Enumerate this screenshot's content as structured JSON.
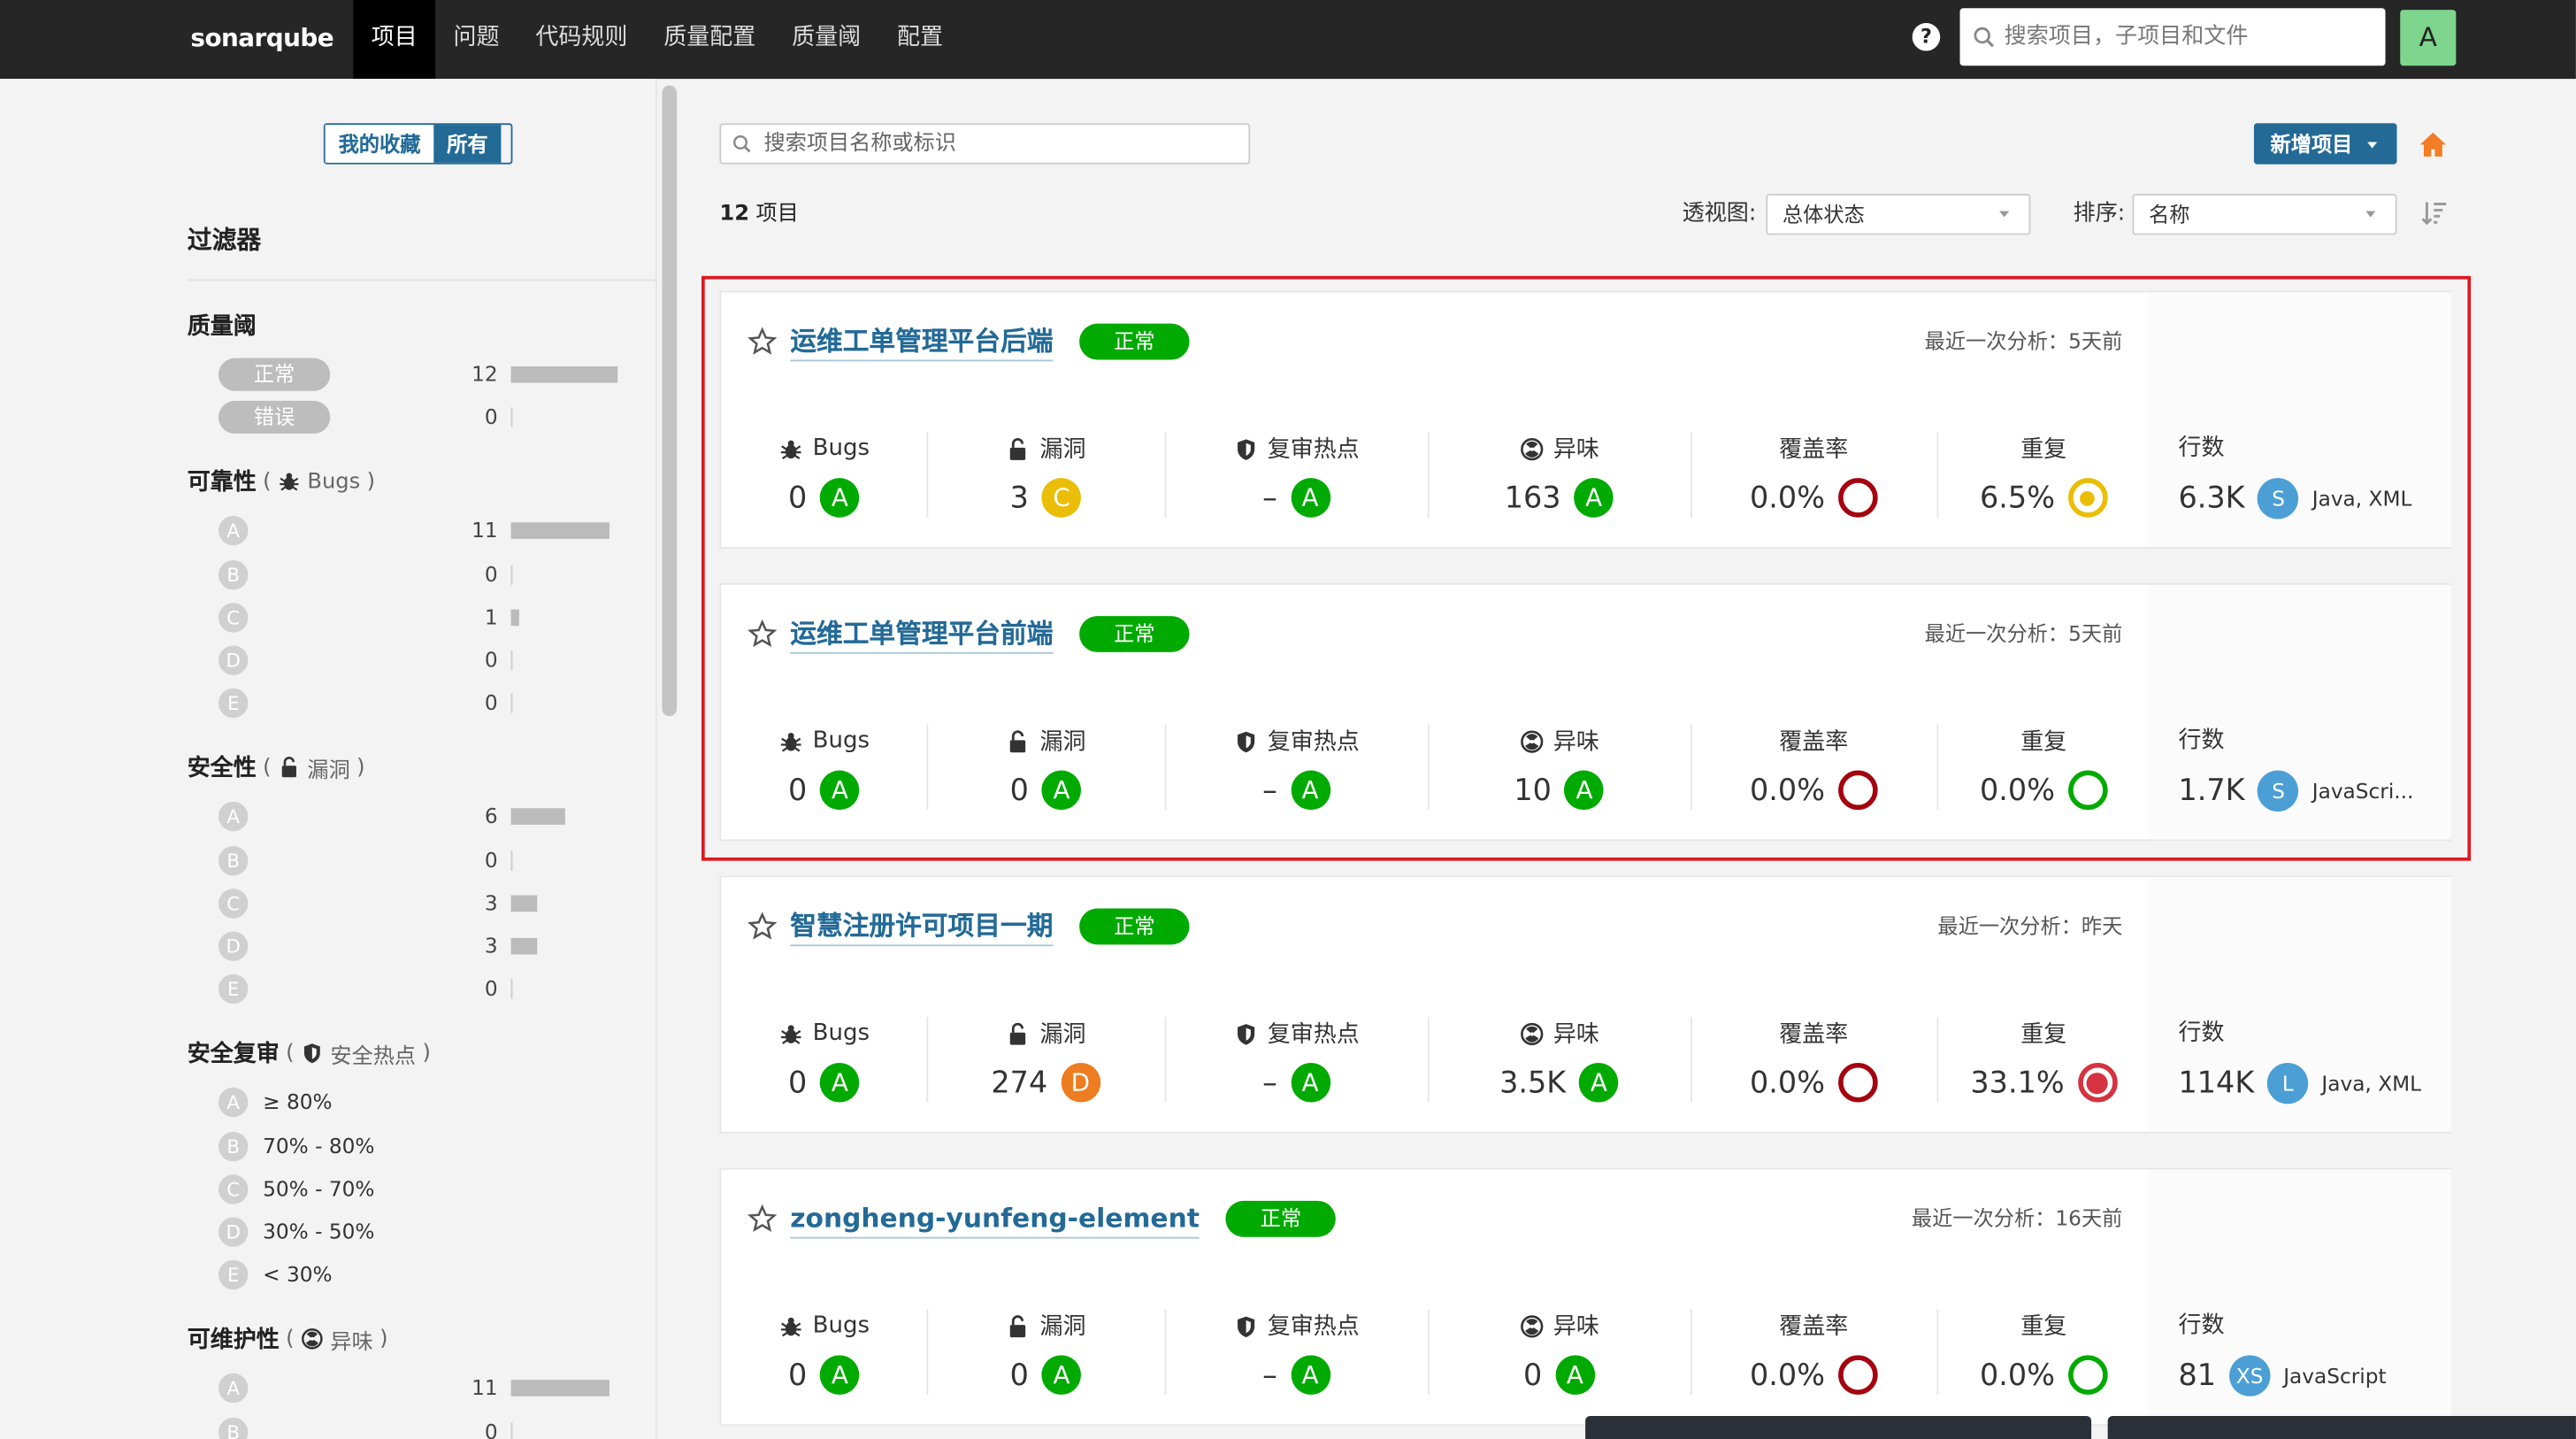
{
  "nav": {
    "logo": "sonarqube",
    "items": [
      "项目",
      "问题",
      "代码规则",
      "质量配置",
      "质量阈",
      "配置"
    ],
    "active": 0,
    "help": "?",
    "search_placeholder": "搜索项目，子项目和文件",
    "avatar": "A"
  },
  "sidebar": {
    "toggle": [
      "我的收藏",
      "所有"
    ],
    "toggle_active": 1,
    "title": "过滤器",
    "paren_open": "(",
    "paren_close": ")",
    "quality_gate": {
      "title": "质量阈",
      "rows": [
        {
          "label": "正常",
          "count": 12
        },
        {
          "label": "错误",
          "count": 0
        }
      ]
    },
    "reliability": {
      "title": "可靠性",
      "facet": "Bugs",
      "icon": "bug",
      "rows": [
        {
          "label": "A",
          "count": 11
        },
        {
          "label": "B",
          "count": 0
        },
        {
          "label": "C",
          "count": 1
        },
        {
          "label": "D",
          "count": 0
        },
        {
          "label": "E",
          "count": 0
        }
      ]
    },
    "security": {
      "title": "安全性",
      "facet": "漏洞",
      "icon": "lock",
      "rows": [
        {
          "label": "A",
          "count": 6
        },
        {
          "label": "B",
          "count": 0
        },
        {
          "label": "C",
          "count": 3
        },
        {
          "label": "D",
          "count": 3
        },
        {
          "label": "E",
          "count": 0
        }
      ]
    },
    "security_review": {
      "title": "安全复审",
      "facet": "安全热点",
      "icon": "shield",
      "rows": [
        {
          "label": "A",
          "range": "≥ 80%"
        },
        {
          "label": "B",
          "range": "70% - 80%"
        },
        {
          "label": "C",
          "range": "50% - 70%"
        },
        {
          "label": "D",
          "range": "30% - 50%"
        },
        {
          "label": "E",
          "range": "< 30%"
        }
      ]
    },
    "maintainability": {
      "title": "可维护性",
      "facet": "异味",
      "icon": "smell",
      "rows": [
        {
          "label": "A",
          "count": 11
        },
        {
          "label": "B",
          "count": 0
        }
      ]
    }
  },
  "main": {
    "search_placeholder": "搜索项目名称或标识",
    "create_button": "新增项目",
    "project_count": 12,
    "project_label": "项目",
    "perspective_label": "透视图:",
    "perspective": "总体状态",
    "sort_label": "排序:",
    "sort": "名称",
    "metric_labels": {
      "bugs": "Bugs",
      "vulnerabilities": "漏洞",
      "hotspots": "复审热点",
      "smells": "异味",
      "coverage": "覆盖率",
      "duplication": "重复",
      "lines": "行数"
    },
    "rating_colors": {
      "A": "#00aa00",
      "B": "#b0d513",
      "C": "#eabe06",
      "D": "#ed7d20",
      "E": "#d4333f"
    },
    "projects": [
      {
        "name": "运维工单管理平台后端",
        "status": "正常",
        "analysis": "最近一次分析：5天前",
        "bugs": {
          "value": 0,
          "rating": "A"
        },
        "vulnerabilities": {
          "value": 3,
          "rating": "C"
        },
        "hotspots": {
          "value": "–",
          "rating": "A"
        },
        "smells": {
          "value": 163,
          "rating": "A"
        },
        "coverage": {
          "value": "0.0%",
          "color": "#a4030f"
        },
        "duplication": {
          "value": "6.5%",
          "color": "#eabe06",
          "dot": true
        },
        "lines": {
          "value": "6.3K",
          "size": "S",
          "languages": "Java, XML"
        }
      },
      {
        "name": "运维工单管理平台前端",
        "status": "正常",
        "analysis": "最近一次分析：5天前",
        "bugs": {
          "value": 0,
          "rating": "A"
        },
        "vulnerabilities": {
          "value": 0,
          "rating": "A"
        },
        "hotspots": {
          "value": "–",
          "rating": "A"
        },
        "smells": {
          "value": 10,
          "rating": "A"
        },
        "coverage": {
          "value": "0.0%",
          "color": "#a4030f"
        },
        "duplication": {
          "value": "0.0%",
          "color": "#00aa00",
          "dot": false
        },
        "lines": {
          "value": "1.7K",
          "size": "S",
          "languages": "JavaScri..."
        }
      },
      {
        "name": "智慧注册许可项目一期",
        "status": "正常",
        "analysis": "最近一次分析：昨天",
        "bugs": {
          "value": 0,
          "rating": "A"
        },
        "vulnerabilities": {
          "value": 274,
          "rating": "D"
        },
        "hotspots": {
          "value": "–",
          "rating": "A"
        },
        "smells": {
          "value": "3.5K",
          "rating": "A"
        },
        "coverage": {
          "value": "0.0%",
          "color": "#a4030f"
        },
        "duplication": {
          "value": "33.1%",
          "color": "#d4333f",
          "dot": true
        },
        "lines": {
          "value": "114K",
          "size": "L",
          "languages": "Java, XML"
        }
      },
      {
        "name": "zongheng-yunfeng-element",
        "status": "正常",
        "analysis": "最近一次分析：16天前",
        "bugs": {
          "value": 0,
          "rating": "A"
        },
        "vulnerabilities": {
          "value": 0,
          "rating": "A"
        },
        "hotspots": {
          "value": "–",
          "rating": "A"
        },
        "smells": {
          "value": 0,
          "rating": "A"
        },
        "coverage": {
          "value": "0.0%",
          "color": "#a4030f"
        },
        "duplication": {
          "value": "0.0%",
          "color": "#00aa00",
          "dot": false
        },
        "lines": {
          "value": 81,
          "size": "XS",
          "languages": "JavaScript"
        }
      }
    ]
  }
}
